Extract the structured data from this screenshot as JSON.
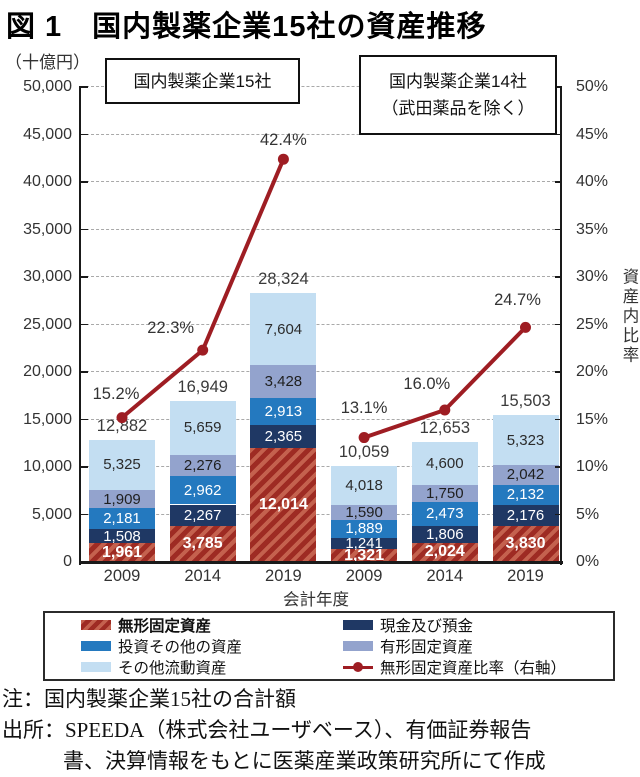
{
  "title": "図 1　国内製薬企業15社の資産推移",
  "chart_data": {
    "type": "bar",
    "subtype": "stacked-bar-with-line",
    "unit_label": "（十億円）",
    "xlabel": "会計年度",
    "right_axis_label": "資産内比率",
    "grid": "dashed-horizontal",
    "legend_position": "bottom",
    "left_axis": {
      "min": 0,
      "max": 50000,
      "step": 5000
    },
    "right_axis": {
      "min": 0,
      "max": 50,
      "step": 5,
      "suffix": "%"
    },
    "categories": [
      "2009",
      "2014",
      "2019",
      "2009",
      "2014",
      "2019"
    ],
    "annotations": [
      {
        "lines": [
          "国内製薬企業15社"
        ]
      },
      {
        "lines": [
          "国内製薬企業14社",
          "（武田薬品を除く）"
        ]
      }
    ],
    "series": [
      {
        "name": "無形固定資産",
        "values": [
          1961,
          3785,
          12014,
          1321,
          2024,
          3830
        ],
        "color": "#9e2b23",
        "stripe": "#c4614e",
        "hatched": true,
        "label_color": "#ffffff",
        "label_bold": true
      },
      {
        "name": "現金及び預金",
        "values": [
          1508,
          2267,
          2365,
          1241,
          1806,
          2176
        ],
        "color": "#1f3864",
        "label_color": "#ffffff"
      },
      {
        "name": "投資その他の資産",
        "values": [
          2181,
          2962,
          2913,
          1889,
          2473,
          2132
        ],
        "color": "#2479bf",
        "label_color": "#ffffff"
      },
      {
        "name": "有形固定資産",
        "values": [
          1909,
          2276,
          3428,
          1590,
          1750,
          2042
        ],
        "color": "#93a3cd",
        "label_color": "#1f1f1f"
      },
      {
        "name": "その他流動資産",
        "values": [
          5325,
          5659,
          7604,
          4018,
          4600,
          5323
        ],
        "color": "#c3def2",
        "label_color": "#2b2b2b"
      }
    ],
    "totals": [
      12882,
      16949,
      28324,
      10059,
      12653,
      15503
    ],
    "line_series": {
      "name": "無形固定資産比率（右軸）",
      "axis": "right",
      "color": "#9e1d23",
      "values": [
        15.2,
        22.3,
        42.4,
        13.1,
        16.0,
        24.7
      ],
      "labels": [
        "15.2%",
        "22.3%",
        "42.4%",
        "13.1%",
        "16.0%",
        "24.7%"
      ],
      "groups": [
        [
          0,
          1,
          2
        ],
        [
          3,
          4,
          5
        ]
      ]
    }
  },
  "legend": {
    "items": [
      {
        "label": "無形固定資産",
        "swatch": "hatch",
        "bold": true
      },
      {
        "label": "現金及び預金",
        "swatch": "navy"
      },
      {
        "label": "投資その他の資産",
        "swatch": "blue"
      },
      {
        "label": "有形固定資産",
        "swatch": "periwinkle"
      },
      {
        "label": "その他流動資産",
        "swatch": "lightblue"
      },
      {
        "label": "無形固定資産比率（右軸）",
        "swatch": "line"
      }
    ]
  },
  "notes": [
    "注：国内製薬企業15社の合計額",
    "出所：SPEEDA（株式会社ユーザベース）、有価証券報告",
    "書、決算情報をもとに医薬産業政策研究所にて作成"
  ]
}
